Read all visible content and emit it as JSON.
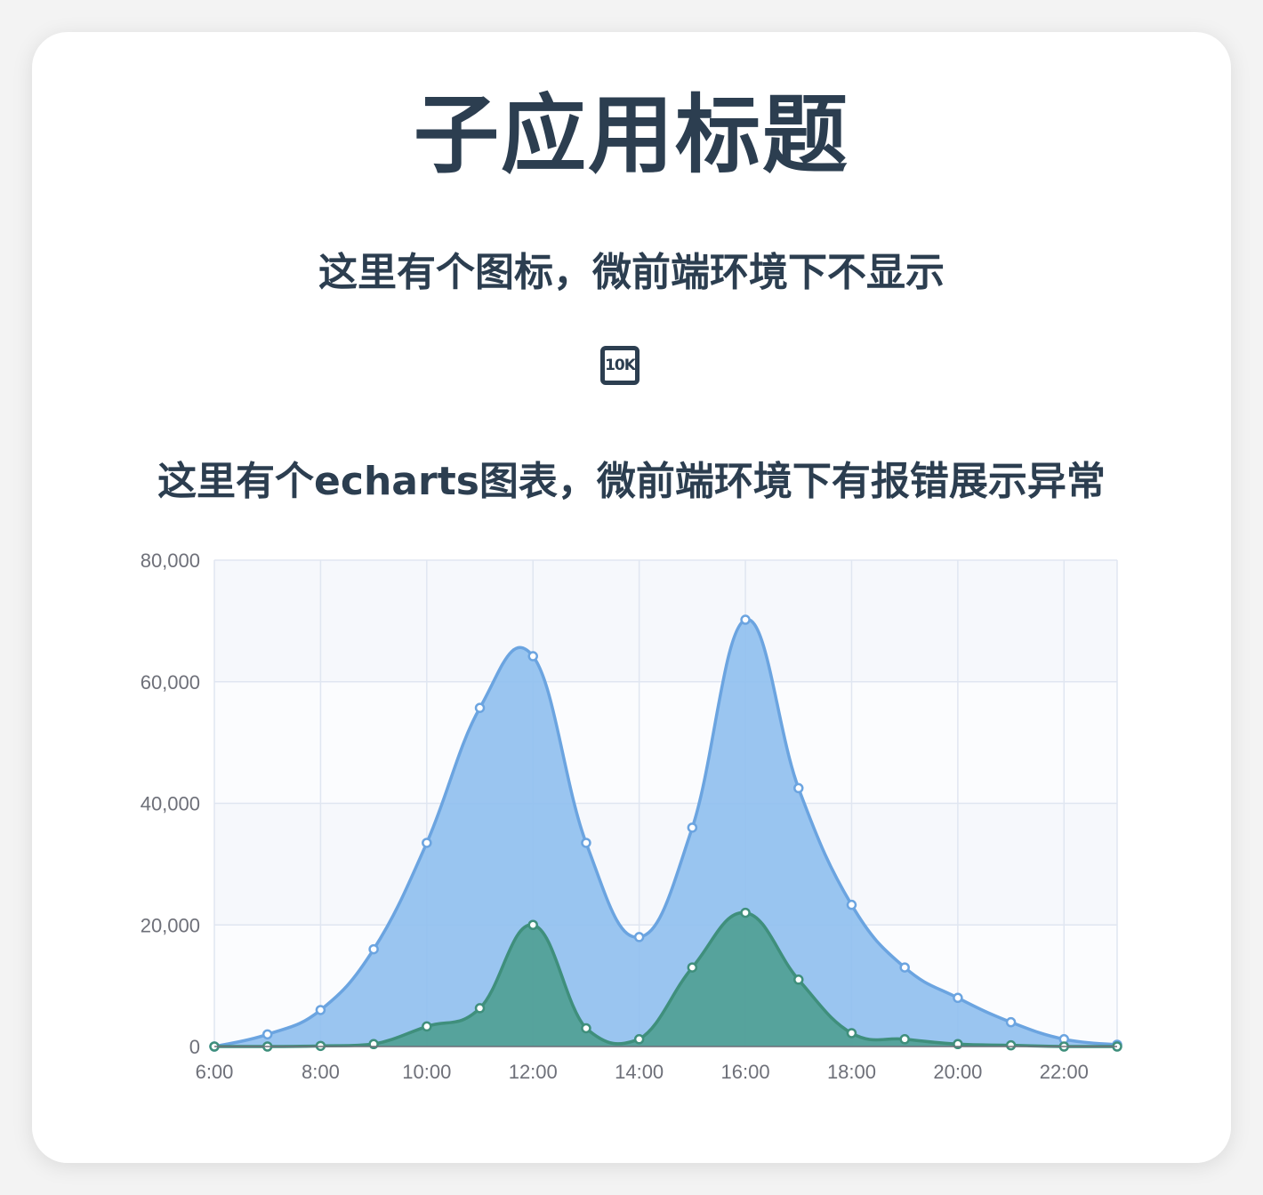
{
  "header": {
    "title": "子应用标题",
    "subtitle_icon": "这里有个图标，微前端环境下不显示",
    "icon_text": "10K",
    "subtitle_chart": "这里有个echarts图表，微前端环境下有报错展示异常"
  },
  "icons": {
    "badge": "10k-icon"
  },
  "colors": {
    "text": "#2c3e50",
    "series_blue": "#6ba4e0",
    "series_blue_fill": "#8fbfee",
    "series_green": "#3f8f7c",
    "series_green_fill": "#4f9f92",
    "grid": "#e0e6f1",
    "band": "#f6f8fc"
  },
  "chart_data": {
    "type": "area",
    "x": [
      "6:00",
      "7:00",
      "8:00",
      "9:00",
      "10:00",
      "11:00",
      "12:00",
      "13:00",
      "14:00",
      "15:00",
      "16:00",
      "17:00",
      "18:00",
      "19:00",
      "20:00",
      "21:00",
      "22:00",
      "23:00"
    ],
    "x_tick_labels": [
      "6:00",
      "8:00",
      "10:00",
      "12:00",
      "14:00",
      "16:00",
      "18:00",
      "20:00",
      "22:00"
    ],
    "y_tick_labels": [
      "0",
      "20,000",
      "40,000",
      "60,000",
      "80,000"
    ],
    "ylim": [
      0,
      80000
    ],
    "grid": true,
    "series": [
      {
        "values": [
          0,
          2000,
          6000,
          16000,
          33500,
          55700,
          64200,
          33500,
          18000,
          36000,
          70200,
          42500,
          23300,
          13000,
          8000,
          4000,
          1200,
          300
        ]
      },
      {
        "values": [
          0,
          0,
          100,
          400,
          3300,
          6300,
          20000,
          3000,
          1200,
          13000,
          22000,
          11000,
          2200,
          1200,
          400,
          200,
          0,
          0
        ]
      }
    ]
  }
}
